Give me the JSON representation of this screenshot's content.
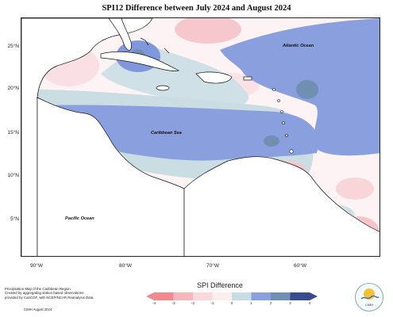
{
  "title": "SPI12 Difference between July 2024 and August 2024",
  "lat_labels": [
    "25°N",
    "20°N",
    "15°N",
    "10°N",
    "5°N"
  ],
  "lon_labels": [
    "90°W",
    "80°W",
    "70°W",
    "60°W"
  ],
  "ocean_labels": {
    "atlantic": "Atlantic Ocean",
    "caribbean": "Caribbean Sea",
    "pacific": "Pacific Ocean"
  },
  "footer": {
    "line1": "Precipitation Map of the Caribbean Region.",
    "line2": "Created by aggregating station based observations",
    "line3": "provided by CariCOF, with NCEP/NCAR Reanalysis Data.",
    "credit": "CIMH August 2024"
  },
  "legend": {
    "title": "SPI Difference",
    "ticks": [
      "-4",
      "-3",
      "-2",
      "-1",
      "0",
      "1",
      "2",
      "3",
      "4"
    ],
    "colors": [
      "#f08a90",
      "#f6b6bb",
      "#fbd8dc",
      "#fdeef0",
      "#c5dde3",
      "#8a9fde",
      "#6f8fb3",
      "#5f7e9c",
      "#3a4a8f"
    ]
  },
  "logo_text": "CIMH"
}
